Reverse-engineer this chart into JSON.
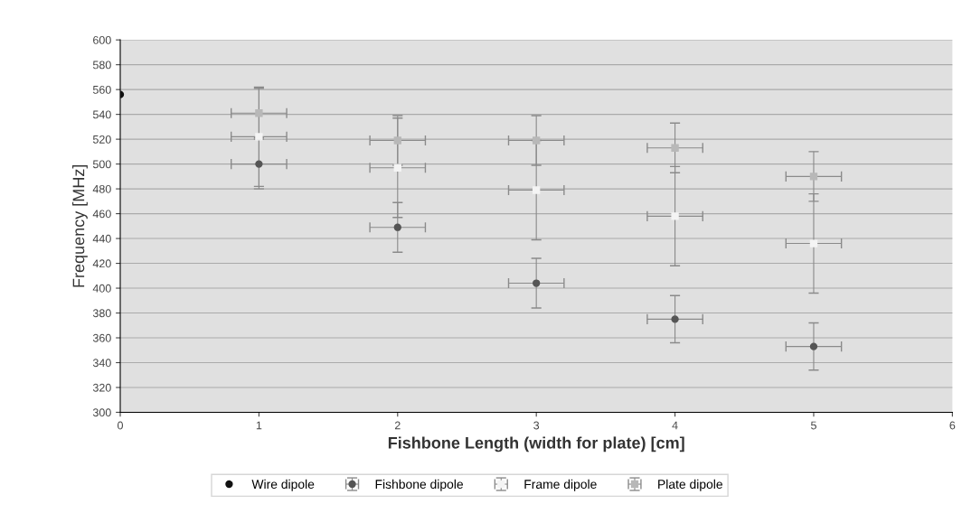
{
  "chart_data": {
    "type": "scatter",
    "xlabel": "Fishbone Length (width for plate) [cm]",
    "ylabel": "Frequency [MHz]",
    "xlim": [
      0,
      6
    ],
    "xticks": [
      0,
      1,
      2,
      3,
      4,
      5,
      6
    ],
    "ylim": [
      300,
      600
    ],
    "yticks": [
      300,
      320,
      340,
      360,
      380,
      400,
      420,
      440,
      460,
      480,
      500,
      520,
      540,
      560,
      580,
      600
    ],
    "grid": "y",
    "legend": "bottom",
    "series": [
      {
        "name": "Wire dipole",
        "color": "#111111",
        "marker": "circle",
        "x": [
          0
        ],
        "values": [
          556
        ]
      },
      {
        "name": "Fishbone dipole",
        "color": "#555555",
        "marker": "circle",
        "x": [
          1,
          2,
          3,
          4,
          5
        ],
        "values": [
          500,
          449,
          404,
          375,
          353
        ],
        "errors": [
          20,
          20,
          20,
          19,
          19
        ],
        "xerrors": [
          0.2,
          0.2,
          0.2,
          0.2,
          0.2
        ]
      },
      {
        "name": "Frame dipole",
        "color": "#f4f4f4",
        "marker": "square",
        "x": [
          1,
          2,
          3,
          4,
          5
        ],
        "values": [
          522,
          497,
          479,
          458,
          436
        ],
        "errors": [
          40,
          40,
          40,
          40,
          40
        ],
        "xerrors": [
          0.2,
          0.2,
          0.2,
          0.2,
          0.2
        ]
      },
      {
        "name": "Plate dipole",
        "color": "#b8b8b8",
        "marker": "square",
        "x": [
          1,
          2,
          3,
          4,
          5
        ],
        "values": [
          541,
          519,
          519,
          513,
          490
        ],
        "errors": [
          20,
          20,
          20,
          20,
          20
        ],
        "xerrors": [
          0.2,
          0.2,
          0.2,
          0.2,
          0.2
        ]
      }
    ]
  }
}
